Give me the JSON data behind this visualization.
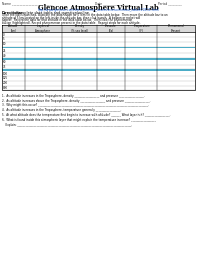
{
  "title": "Glencoe Atmosphere Virtual Lab",
  "url": "http://www.glencoe.com/sites/common_assets/science/virtual_labs/E11/E11.html",
  "directions_label": "Directions:",
  "directions_text": "Complete data table and question/online.",
  "body_lines": [
    "Once the lab is launched, illustrate the data shown for 0 (km) in the data table below.  Then move the altitude bar to an",
    "altitude of 5 km located on the left inside the altitude bar, then click launch.  A balloon or rocket will",
    "appear.  Record the data for that altitude in the data table below.  Then click the phenomenon",
    "button (highlighted). Record phenomenon present in the data table.  Repeat steps for each altitude."
  ],
  "table_headers": [
    "Altitude\n(km)",
    "Layers of\nAtmosphere",
    "Density\n(% sea level)",
    "Pressure\n(Pa)",
    "Temperature\n(°F)",
    "Phenomenal\nPresent"
  ],
  "row_labels": [
    "0",
    "5",
    "10",
    "25",
    "40",
    "60",
    "75",
    "100",
    "125",
    "200",
    "800"
  ],
  "separator_after_indices": [
    2,
    4,
    6
  ],
  "separator_color": "#4bacc6",
  "questions": [
    "1.  As altitude increases in the Troposphere, density __________________ and pressure __________________.",
    "2.  As altitude increases above the Troposphere, density __________________ and pressure __________________.",
    "3.  Why might this occur? ________________________________________________________________________________.",
    "4.  As altitude increases in the Troposphere, temperature generally __________________.",
    "5.  At what altitude does the temperature first begin to increase with altitude? _______ What layer is it? __________________.",
    "6.  What is found inside this atmospheric layer that might explain the temperature increase? __________________",
    "    Explain: ___________________________________________________________________________________."
  ],
  "bg_color": "#ffffff",
  "header_bg": "#d9d9d9",
  "row_line_color": "#aaaaaa",
  "border_color": "#000000"
}
